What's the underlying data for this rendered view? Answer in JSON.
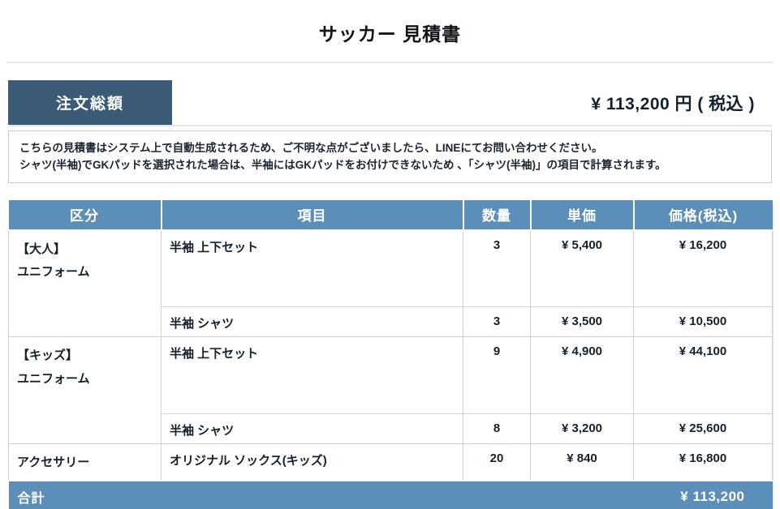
{
  "page": {
    "title": "サッカー 見積書"
  },
  "order_total": {
    "label": "注文総額",
    "amount": "¥ 113,200 円 ( 税込 )"
  },
  "notice": {
    "line1": "こちらの見積書はシステム上で自動生成されるため、ご不明な点がございましたら、LINEにてお問い合わせください。",
    "line2": "シャツ(半袖)でGKパッドを選択された場合は、半袖にはGKパッドをお付けできないため 、「シャツ(半袖)」の項目で計算されます。"
  },
  "table": {
    "headers": [
      "区分",
      "項目",
      "数量",
      "単価",
      "価格(税込)"
    ],
    "rows": [
      {
        "category_line1": "【大人】",
        "category_line2": "ユニフォーム",
        "item": "半袖 上下セット",
        "qty": "3",
        "unit_price": "¥ 5,400",
        "price": "¥ 16,200"
      },
      {
        "item": "半袖 シャツ",
        "qty": "3",
        "unit_price": "¥ 3,500",
        "price": "¥ 10,500"
      },
      {
        "category_line1": "【キッズ】",
        "category_line2": "ユニフォーム",
        "item": "半袖 上下セット",
        "qty": "9",
        "unit_price": "¥ 4,900",
        "price": "¥ 44,100"
      },
      {
        "item": "半袖 シャツ",
        "qty": "8",
        "unit_price": "¥ 3,200",
        "price": "¥ 25,600"
      },
      {
        "category_line1": "アクセサリー",
        "item": "オリジナル ソックス(キッズ)",
        "qty": "20",
        "unit_price": "¥ 840",
        "price": "¥ 16,800"
      }
    ],
    "total": {
      "label": "合計",
      "amount": "¥ 113,200"
    }
  },
  "colors": {
    "navy_accent": "#3a5a75",
    "table_header_blue": "#5c8eba",
    "category_cell_blue": "#e9eef5",
    "section_separator_blue": "#4c7ea9"
  }
}
